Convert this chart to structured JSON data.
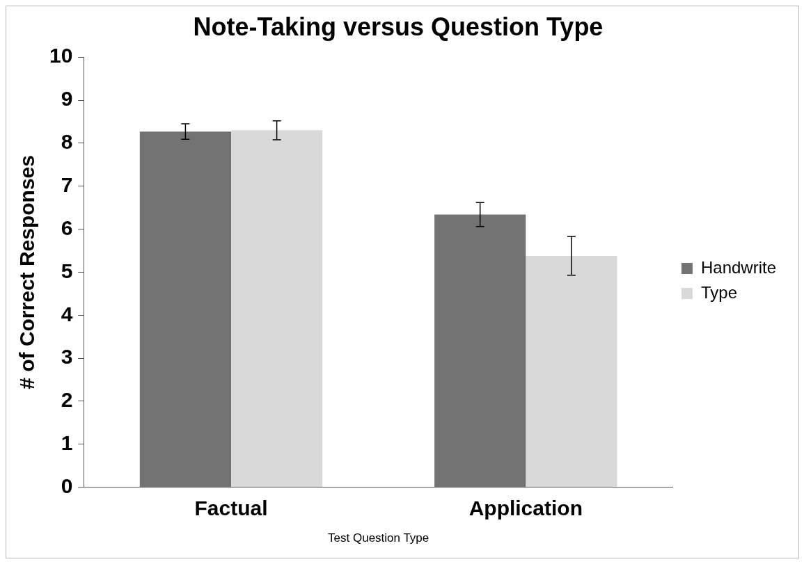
{
  "chart_data": {
    "type": "bar",
    "title": "Note-Taking versus Question Type",
    "xlabel": "Test Question Type",
    "ylabel": "# of Correct Responses",
    "categories": [
      "Factual",
      "Application"
    ],
    "series": [
      {
        "name": "Handwrite",
        "color": "#737373",
        "values": [
          8.27,
          6.34
        ],
        "errors": [
          0.18,
          0.28
        ]
      },
      {
        "name": "Type",
        "color": "#d9d9d9",
        "values": [
          8.3,
          5.38
        ],
        "errors": [
          0.22,
          0.45
        ]
      }
    ],
    "ylim": [
      0,
      10
    ],
    "yticks": [
      0,
      1,
      2,
      3,
      4,
      5,
      6,
      7,
      8,
      9,
      10
    ],
    "grid": false,
    "legend": "right"
  }
}
